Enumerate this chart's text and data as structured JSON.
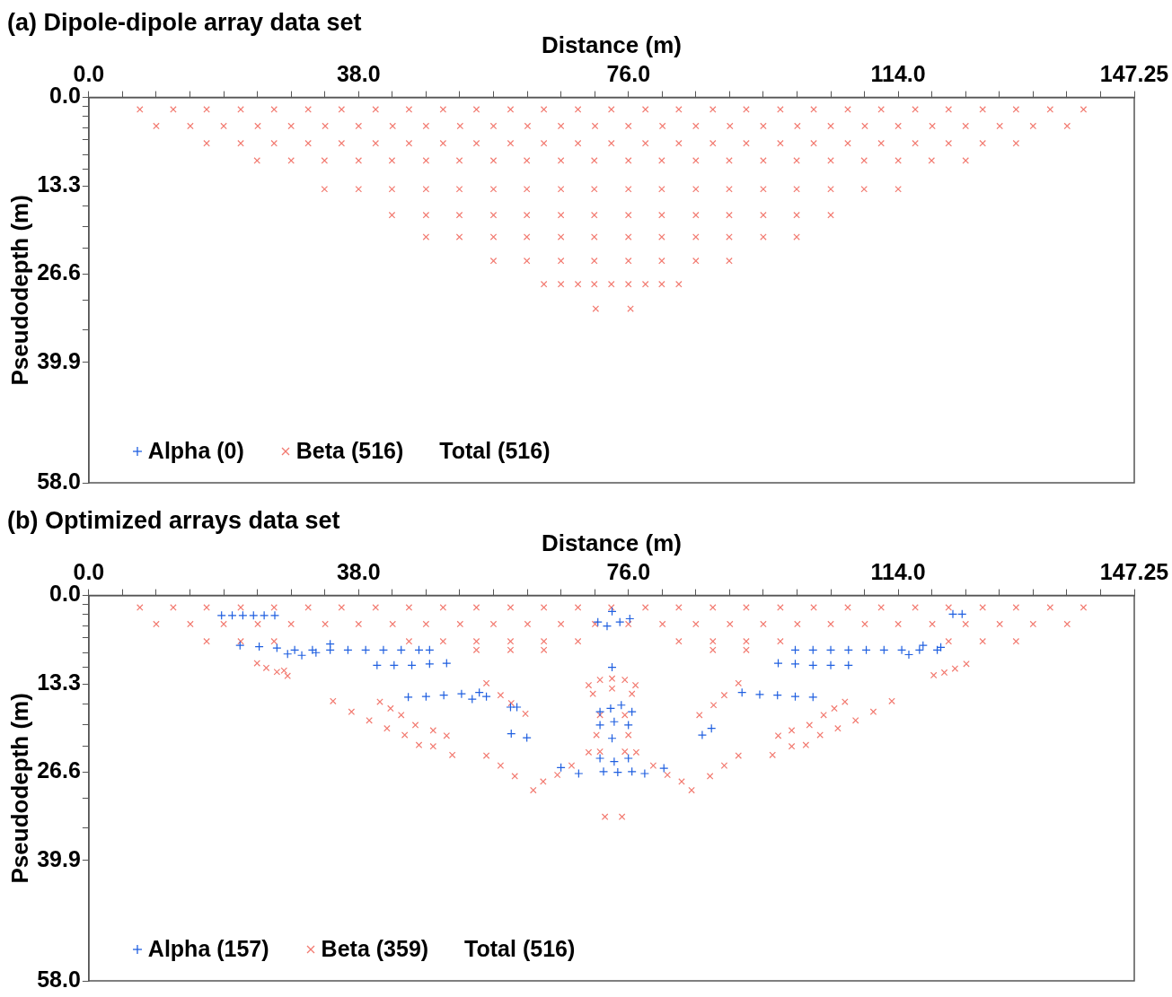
{
  "chart_data": [
    {
      "type": "scatter",
      "title": "(a) Dipole-dipole array data set",
      "xlabel": "Distance (m)",
      "ylabel": "Pseudodepth (m)",
      "xlim": [
        0,
        147.25
      ],
      "ylim": [
        58,
        0
      ],
      "xticks": [
        {
          "value": 0,
          "label": "0.0"
        },
        {
          "value": 4.75,
          "label": null
        },
        {
          "value": 9.5,
          "label": null
        },
        {
          "value": 14.25,
          "label": null
        },
        {
          "value": 19,
          "label": null
        },
        {
          "value": 23.75,
          "label": null
        },
        {
          "value": 28.5,
          "label": null
        },
        {
          "value": 33.25,
          "label": null
        },
        {
          "value": 38,
          "label": "38.0"
        },
        {
          "value": 42.75,
          "label": null
        },
        {
          "value": 47.5,
          "label": null
        },
        {
          "value": 52.25,
          "label": null
        },
        {
          "value": 57,
          "label": null
        },
        {
          "value": 61.75,
          "label": null
        },
        {
          "value": 66.5,
          "label": null
        },
        {
          "value": 71.25,
          "label": null
        },
        {
          "value": 76,
          "label": "76.0"
        },
        {
          "value": 80.75,
          "label": null
        },
        {
          "value": 85.5,
          "label": null
        },
        {
          "value": 90.25,
          "label": null
        },
        {
          "value": 95,
          "label": null
        },
        {
          "value": 99.75,
          "label": null
        },
        {
          "value": 104.5,
          "label": null
        },
        {
          "value": 109.25,
          "label": null
        },
        {
          "value": 114,
          "label": "114.0"
        },
        {
          "value": 118.75,
          "label": null
        },
        {
          "value": 123.5,
          "label": null
        },
        {
          "value": 128.25,
          "label": null
        },
        {
          "value": 133,
          "label": null
        },
        {
          "value": 137.75,
          "label": null
        },
        {
          "value": 142.5,
          "label": null
        },
        147.25
      ],
      "yticks": [
        {
          "value": 0,
          "label": "0.0"
        },
        {
          "value": 1.3,
          "label": null
        },
        {
          "value": 2.8,
          "label": null
        },
        {
          "value": 4.6,
          "label": null
        },
        {
          "value": 6.4,
          "label": null
        },
        {
          "value": 8.6,
          "label": null
        },
        {
          "value": 10.8,
          "label": null
        },
        13.3,
        {
          "value": 16.3,
          "label": null
        },
        {
          "value": 19.4,
          "label": null
        },
        {
          "value": 22.7,
          "label": null
        },
        26.6,
        {
          "value": 30.5,
          "label": null
        },
        {
          "value": 35,
          "label": null
        },
        39.9,
        {
          "value": 58,
          "label": "58.0"
        }
      ],
      "grid": false,
      "legend": "bottom left",
      "annotations": [
        "Total (516)"
      ],
      "series": [
        {
          "name": "Alpha (0)",
          "color": "#1f5fe0",
          "marker": "plus"
        },
        {
          "name": "Beta (516)",
          "color": "#f27a70",
          "marker": "cross",
          "x": [
            7.2,
            11.9,
            16.6,
            21.4,
            26.1,
            30.9,
            35.6,
            40.4,
            45.1,
            49.9,
            54.6,
            59.4,
            64.1,
            68.9,
            73.6,
            78.4,
            83.1,
            87.9,
            92.6,
            97.4,
            102.1,
            106.9,
            111.6,
            116.4,
            121.1,
            125.9,
            130.6,
            135.4,
            140.1,
            9.5,
            14.3,
            19,
            23.8,
            28.5,
            33.3,
            38,
            42.8,
            47.5,
            52.3,
            57,
            61.8,
            66.5,
            71.3,
            76,
            80.8,
            85.5,
            90.3,
            95,
            99.8,
            104.5,
            109.3,
            114,
            118.8,
            123.5,
            128.3,
            133,
            137.8,
            16.6,
            21.4,
            26.1,
            30.9,
            35.6,
            40.4,
            45.1,
            49.9,
            54.6,
            59.4,
            64.1,
            68.9,
            73.6,
            78.4,
            83.1,
            87.9,
            92.6,
            97.4,
            102.1,
            106.9,
            111.6,
            116.4,
            121.1,
            125.9,
            130.6,
            23.7,
            28.5,
            33.2,
            38,
            42.7,
            47.5,
            52.2,
            57,
            61.7,
            66.5,
            71.2,
            76,
            80.7,
            85.5,
            90.2,
            95,
            99.7,
            104.5,
            109.2,
            114,
            118.7,
            123.5,
            33.2,
            38,
            42.7,
            47.5,
            52.2,
            57,
            61.7,
            66.5,
            71.2,
            76,
            80.7,
            85.5,
            90.2,
            95,
            99.7,
            104.5,
            109.2,
            114,
            42.7,
            47.5,
            52.2,
            57,
            61.7,
            66.5,
            71.2,
            76,
            80.7,
            85.5,
            90.2,
            95,
            99.7,
            104.5,
            47.5,
            52.2,
            57,
            61.7,
            66.5,
            71.2,
            76,
            80.7,
            85.5,
            90.2,
            95,
            99.7,
            57,
            61.7,
            66.5,
            71.2,
            76,
            80.7,
            85.5,
            90.2,
            64.1,
            66.5,
            68.9,
            71.2,
            73.6,
            76,
            78.4,
            80.7,
            83.1,
            71.4,
            76.3
          ],
          "values": [
            1.8,
            1.8,
            1.8,
            1.8,
            1.8,
            1.8,
            1.8,
            1.8,
            1.8,
            1.8,
            1.8,
            1.8,
            1.8,
            1.8,
            1.8,
            1.8,
            1.8,
            1.8,
            1.8,
            1.8,
            1.8,
            1.8,
            1.8,
            1.8,
            1.8,
            1.8,
            1.8,
            1.8,
            1.8,
            4.3,
            4.3,
            4.3,
            4.3,
            4.3,
            4.3,
            4.3,
            4.3,
            4.3,
            4.3,
            4.3,
            4.3,
            4.3,
            4.3,
            4.3,
            4.3,
            4.3,
            4.3,
            4.3,
            4.3,
            4.3,
            4.3,
            4.3,
            4.3,
            4.3,
            4.3,
            4.3,
            4.3,
            6.9,
            6.9,
            6.9,
            6.9,
            6.9,
            6.9,
            6.9,
            6.9,
            6.9,
            6.9,
            6.9,
            6.9,
            6.9,
            6.9,
            6.9,
            6.9,
            6.9,
            6.9,
            6.9,
            6.9,
            6.9,
            6.9,
            6.9,
            6.9,
            6.9,
            9.5,
            9.5,
            9.5,
            9.5,
            9.5,
            9.5,
            9.5,
            9.5,
            9.5,
            9.5,
            9.5,
            9.5,
            9.5,
            9.5,
            9.5,
            9.5,
            9.5,
            9.5,
            9.5,
            9.5,
            9.5,
            9.5,
            13.8,
            13.8,
            13.8,
            13.8,
            13.8,
            13.8,
            13.8,
            13.8,
            13.8,
            13.8,
            13.8,
            13.8,
            13.8,
            13.8,
            13.8,
            13.8,
            13.8,
            13.8,
            17.7,
            17.7,
            17.7,
            17.7,
            17.7,
            17.7,
            17.7,
            17.7,
            17.7,
            17.7,
            17.7,
            17.7,
            17.7,
            17.7,
            21,
            21,
            21,
            21,
            21,
            21,
            21,
            21,
            21,
            21,
            21,
            21,
            24.6,
            24.6,
            24.6,
            24.6,
            24.6,
            24.6,
            24.6,
            24.6,
            28.1,
            28.1,
            28.1,
            28.1,
            28.1,
            28.1,
            28.1,
            28.1,
            28.1,
            31.8,
            31.8
          ]
        }
      ]
    },
    {
      "type": "scatter",
      "title": "(b) Optimized arrays data set",
      "xlabel": "Distance (m)",
      "ylabel": "Pseudodepth (m)",
      "xlim": [
        0,
        147.25
      ],
      "ylim": [
        58,
        0
      ],
      "xticks": [
        {
          "value": 0,
          "label": "0.0"
        },
        {
          "value": 4.75,
          "label": null
        },
        {
          "value": 9.5,
          "label": null
        },
        {
          "value": 14.25,
          "label": null
        },
        {
          "value": 19,
          "label": null
        },
        {
          "value": 23.75,
          "label": null
        },
        {
          "value": 28.5,
          "label": null
        },
        {
          "value": 33.25,
          "label": null
        },
        {
          "value": 38,
          "label": "38.0"
        },
        {
          "value": 42.75,
          "label": null
        },
        {
          "value": 47.5,
          "label": null
        },
        {
          "value": 52.25,
          "label": null
        },
        {
          "value": 57,
          "label": null
        },
        {
          "value": 61.75,
          "label": null
        },
        {
          "value": 66.5,
          "label": null
        },
        {
          "value": 71.25,
          "label": null
        },
        {
          "value": 76,
          "label": "76.0"
        },
        {
          "value": 80.75,
          "label": null
        },
        {
          "value": 85.5,
          "label": null
        },
        {
          "value": 90.25,
          "label": null
        },
        {
          "value": 95,
          "label": null
        },
        {
          "value": 99.75,
          "label": null
        },
        {
          "value": 104.5,
          "label": null
        },
        {
          "value": 109.25,
          "label": null
        },
        {
          "value": 114,
          "label": "114.0"
        },
        {
          "value": 118.75,
          "label": null
        },
        {
          "value": 123.5,
          "label": null
        },
        {
          "value": 128.25,
          "label": null
        },
        {
          "value": 133,
          "label": null
        },
        {
          "value": 137.75,
          "label": null
        },
        {
          "value": 142.5,
          "label": null
        },
        147.25
      ],
      "yticks": [
        {
          "value": 0,
          "label": "0.0"
        },
        {
          "value": 1.3,
          "label": null
        },
        {
          "value": 2.8,
          "label": null
        },
        {
          "value": 4.6,
          "label": null
        },
        {
          "value": 6.4,
          "label": null
        },
        {
          "value": 8.6,
          "label": null
        },
        {
          "value": 10.8,
          "label": null
        },
        13.3,
        {
          "value": 16.3,
          "label": null
        },
        {
          "value": 19.4,
          "label": null
        },
        {
          "value": 22.7,
          "label": null
        },
        26.6,
        {
          "value": 30.5,
          "label": null
        },
        {
          "value": 35,
          "label": null
        },
        39.9,
        {
          "value": 58,
          "label": "58.0"
        }
      ],
      "grid": false,
      "legend": "bottom left",
      "annotations": [
        "Total (516)"
      ],
      "series": [
        {
          "name": "Alpha (157)",
          "color": "#1f5fe0",
          "marker": "plus",
          "x": [
            18.7,
            20.2,
            21.7,
            23.2,
            24.7,
            26.2,
            21.3,
            24,
            26.5,
            29,
            31.5,
            34,
            36.5,
            39,
            41.5,
            44,
            46.5,
            48,
            28,
            30,
            32,
            34,
            40.6,
            43,
            45.5,
            48,
            50.4,
            45,
            47.5,
            50,
            52.5,
            55,
            56,
            54,
            59.4,
            60.3,
            61.7,
            59.5,
            73.7,
            71.7,
            73,
            74.8,
            76.2,
            73.7,
            72,
            73.5,
            75,
            76.5,
            72,
            74,
            76,
            73.7,
            72,
            74,
            76,
            72.5,
            74.5,
            76.5,
            66.5,
            69,
            78.3,
            81,
            86.4,
            87.7,
            92,
            94.5,
            97,
            99.5,
            102,
            97.1,
            99.5,
            102,
            104.5,
            107,
            99.5,
            102,
            104.5,
            107,
            109.5,
            112,
            114.5,
            117,
            119.5,
            117.5,
            120,
            115.5,
            121.7,
            123
          ],
          "values": [
            3,
            3,
            3,
            3,
            3,
            3,
            7.5,
            7.7,
            7.9,
            8.2,
            8.2,
            8.2,
            8.2,
            8.2,
            8.2,
            8.2,
            8.2,
            8.2,
            8.8,
            9,
            8.6,
            7.3,
            10.5,
            10.5,
            10.5,
            10.3,
            10.2,
            15.3,
            15.2,
            15,
            14.8,
            14.6,
            15.2,
            15.6,
            16.8,
            16.8,
            21.4,
            20.8,
            2.4,
            4,
            4.6,
            4,
            3.5,
            10.8,
            17.5,
            17,
            16.5,
            17.5,
            19.5,
            19,
            19.5,
            21.5,
            24.5,
            25,
            24.5,
            26.5,
            26.6,
            26.5,
            25.9,
            26.8,
            26.8,
            26,
            21,
            20,
            14.6,
            14.9,
            15,
            15.2,
            15.3,
            10.2,
            10.3,
            10.5,
            10.5,
            10.5,
            8.2,
            8.2,
            8.2,
            8.2,
            8.2,
            8.2,
            8.2,
            8.2,
            8.2,
            7.5,
            7.8,
            8.9,
            2.8,
            2.8
          ]
        },
        {
          "name": "Beta (359)",
          "color": "#f27a70",
          "marker": "cross",
          "x": [
            7.2,
            11.9,
            16.6,
            21.4,
            26.1,
            30.9,
            35.6,
            40.4,
            45.1,
            49.9,
            54.6,
            59.4,
            64.1,
            68.9,
            73.6,
            78.4,
            83.1,
            87.9,
            92.6,
            97.4,
            102.1,
            106.9,
            111.6,
            116.4,
            121.1,
            125.9,
            130.6,
            135.4,
            140.1,
            9.5,
            14.3,
            19,
            23.8,
            28.5,
            33.3,
            38,
            42.8,
            47.5,
            52.3,
            57,
            61.8,
            66.5,
            71.3,
            76,
            80.8,
            85.5,
            90.3,
            95,
            99.8,
            104.5,
            109.3,
            114,
            118.8,
            123.5,
            128.3,
            133,
            137.8,
            16.6,
            21.4,
            26.1,
            45.1,
            49.9,
            54.6,
            59.4,
            64.1,
            68.9,
            83.1,
            87.9,
            92.6,
            97.4,
            121.1,
            125.9,
            130.6,
            54.6,
            59.4,
            64.1,
            87.9,
            92.6,
            23.7,
            25,
            26.5,
            28,
            27.5,
            119,
            120.5,
            122,
            123.6,
            70.4,
            72,
            73.7,
            75.5,
            77,
            71,
            76.5,
            73.7,
            56,
            58,
            59.5,
            61.5,
            91.5,
            89.5,
            88,
            86,
            72,
            75.5,
            71.5,
            76,
            72,
            75.5,
            34.4,
            37,
            39.5,
            42,
            44.5,
            46.5,
            48.5,
            51.2,
            41,
            42.5,
            44,
            46,
            48.5,
            50.4,
            56,
            58,
            60,
            62.6,
            64,
            66,
            68,
            70.4,
            113.1,
            110.5,
            108,
            105.5,
            103,
            101,
            99,
            96.3,
            106.5,
            105,
            103.5,
            101.5,
            99,
            97.1,
            91.5,
            89.5,
            87.5,
            84.9,
            83.5,
            81.5,
            79.5,
            77.1,
            72.7,
            75.1
          ],
          "values": [
            1.8,
            1.8,
            1.8,
            1.8,
            1.8,
            1.8,
            1.8,
            1.8,
            1.8,
            1.8,
            1.8,
            1.8,
            1.8,
            1.8,
            1.8,
            1.8,
            1.8,
            1.8,
            1.8,
            1.8,
            1.8,
            1.8,
            1.8,
            1.8,
            1.8,
            1.8,
            1.8,
            1.8,
            1.8,
            4.3,
            4.3,
            4.3,
            4.3,
            4.3,
            4.3,
            4.3,
            4.3,
            4.3,
            4.3,
            4.3,
            4.3,
            4.3,
            4.3,
            4.3,
            4.3,
            4.3,
            4.3,
            4.3,
            4.3,
            4.3,
            4.3,
            4.3,
            4.3,
            4.3,
            4.3,
            4.3,
            4.3,
            6.9,
            6.9,
            6.9,
            6.9,
            6.9,
            6.9,
            6.9,
            6.9,
            6.9,
            6.9,
            6.9,
            6.9,
            6.9,
            6.9,
            6.9,
            6.9,
            8.2,
            8.2,
            8.2,
            8.2,
            8.2,
            10.2,
            10.9,
            11.5,
            12.1,
            11.3,
            12,
            11.6,
            11,
            10.3,
            13.5,
            12.7,
            14,
            12.7,
            13.5,
            14.8,
            14.8,
            12.5,
            13.2,
            15,
            16.2,
            17.8,
            13.2,
            15,
            16.5,
            18,
            18,
            18,
            21,
            21,
            23.5,
            23.5,
            15.9,
            17.5,
            18.8,
            20,
            21,
            22.5,
            22.7,
            24,
            16,
            17,
            18,
            19.5,
            20.3,
            21.1,
            24.1,
            25.6,
            27.2,
            29.3,
            28,
            27,
            25.6,
            23.6,
            15.9,
            17.5,
            18.8,
            20,
            21,
            22.5,
            22.7,
            24,
            16,
            17,
            18,
            19.5,
            20.3,
            21.1,
            24.1,
            25.6,
            27.2,
            29.3,
            28,
            27,
            25.6,
            23.6,
            33.3,
            33.3
          ]
        }
      ]
    }
  ]
}
